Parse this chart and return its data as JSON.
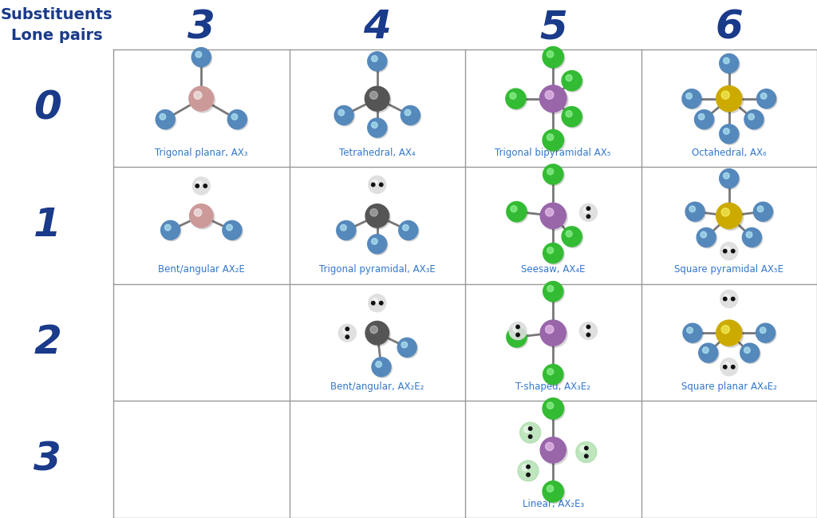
{
  "title_substituents": "Substituents",
  "title_lone_pairs": "Lone pairs",
  "col_headers": [
    "3",
    "4",
    "5",
    "6"
  ],
  "row_headers": [
    "0",
    "1",
    "2",
    "3"
  ],
  "header_color": "#1a3a8a",
  "grid_color": "#999999",
  "bg_color": "#ffffff",
  "label_color": "#3377cc",
  "label_fontsize": 8.5,
  "header_fontsize": 36,
  "row_header_fontsize": 36,
  "title_fontsize": 14,
  "cells": [
    {
      "row": 0,
      "col": 0,
      "label": "Trigonal planar, AX₃",
      "shape": "trigonal_planar"
    },
    {
      "row": 0,
      "col": 1,
      "label": "Tetrahedral, AX₄",
      "shape": "tetrahedral"
    },
    {
      "row": 0,
      "col": 2,
      "label": "Trigonal bipyramidal AX₅",
      "shape": "trigonal_bipyramidal"
    },
    {
      "row": 0,
      "col": 3,
      "label": "Octahedral, AX₆",
      "shape": "octahedral"
    },
    {
      "row": 1,
      "col": 0,
      "label": "Bent/angular AX₂E",
      "shape": "bent"
    },
    {
      "row": 1,
      "col": 1,
      "label": "Trigonal pyramidal, AX₃E",
      "shape": "trigonal_pyramidal"
    },
    {
      "row": 1,
      "col": 2,
      "label": "Seesaw, AX₄E",
      "shape": "seesaw"
    },
    {
      "row": 1,
      "col": 3,
      "label": "Square pyramidal AX₅E",
      "shape": "square_pyramidal"
    },
    {
      "row": 2,
      "col": 1,
      "label": "Bent/angular, AX₂E₂",
      "shape": "bent2"
    },
    {
      "row": 2,
      "col": 2,
      "label": "T-shaped, AX₃E₂",
      "shape": "t_shaped"
    },
    {
      "row": 2,
      "col": 3,
      "label": "Square planar AX₄E₂",
      "shape": "square_planar"
    },
    {
      "row": 3,
      "col": 2,
      "label": "Linear, AX₂E₃",
      "shape": "linear"
    }
  ],
  "center_color_pink": "#cc9999",
  "center_color_dark": "#555555",
  "center_color_purple": "#9966aa",
  "center_color_yellow": "#ccaa00",
  "ligand_color_blue": "#5588bb",
  "ligand_color_green": "#33bb33",
  "lone_pair_white": "#dddddd",
  "lone_dot_color": "#222222"
}
